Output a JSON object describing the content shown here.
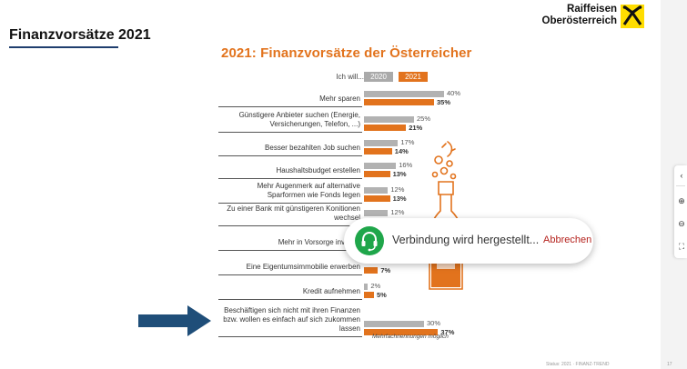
{
  "slide": {
    "title": "Finanzvorsätze 2021",
    "logo_line1": "Raiffeisen",
    "logo_line2": "Oberösterreich"
  },
  "chart_data": {
    "type": "bar",
    "title": "2021: Finanzvorsätze der Österreicher",
    "header_label": "Ich will...",
    "series": [
      {
        "name": "2020",
        "color": "#b2b2b2"
      },
      {
        "name": "2021",
        "color": "#e2731d"
      }
    ],
    "categories": [
      "Mehr sparen",
      "Günstigere Anbieter suchen (Energie, Versicherungen, Telefon, ...)",
      "Besser bezahlten Job suchen",
      "Haushaltsbudget erstellen",
      "Mehr Augenmerk auf alternative Sparformen wie Fonds legen",
      "Zu einer Bank mit günstigeren Konitionen wechsel",
      "Mehr in Vorsorge investie",
      "Eine Eigentumsimmobilie erwerben",
      "Kredit aufnehmen",
      "Beschäftigen sich nicht mit ihren Finanzen bzw. wollen es einfach auf sich zukommen lassen"
    ],
    "values_2020": [
      40,
      25,
      17,
      16,
      12,
      12,
      null,
      null,
      2,
      30
    ],
    "values_2021": [
      35,
      21,
      14,
      13,
      13,
      null,
      null,
      7,
      5,
      37
    ],
    "labels_2020": [
      "40%",
      "25%",
      "17%",
      "16%",
      "12%",
      "12%",
      "",
      "",
      "2%",
      "30%"
    ],
    "labels_2021": [
      "35%",
      "21%",
      "14%",
      "13%",
      "13%",
      "",
      "",
      "7%",
      "5%",
      "37%"
    ],
    "footnote": "Mehrfachnennungen möglich"
  },
  "popup": {
    "message": "Verbindung wird hergestellt...",
    "cancel_label": "Abbrechen",
    "icon": "headset-icon"
  },
  "side_toolbar": {
    "icons": [
      "collapse-icon",
      "zoom-in-icon",
      "zoom-out-icon",
      "fullscreen-icon"
    ]
  },
  "footer": {
    "text": "Status: 2021 · FINANZ-TREND",
    "page": "17"
  }
}
